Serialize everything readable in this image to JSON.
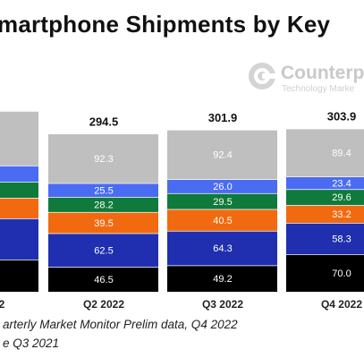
{
  "title": "martphone Shipments by Key",
  "logo": {
    "name": "Counterp",
    "tagline": "Technology Marke"
  },
  "footnotes": [
    "arterly Market Monitor Prelim data, Q4 2022",
    "e Q3 2021"
  ],
  "colors": {
    "gray": "#bfbfbf",
    "lightblue": "#4a6cf2",
    "green": "#0f7a3c",
    "orange": "#f26a10",
    "navy": "#1f2fb0",
    "black": "#000000"
  },
  "chart_data": {
    "type": "bar",
    "stacked": true,
    "ylim": [
      0,
      320
    ],
    "categories": [
      "2",
      "Q2 2022",
      "Q3 2022",
      "Q4 2022"
    ],
    "totals": [
      "",
      "294.5",
      "301.9",
      "303.9"
    ],
    "series": [
      {
        "color": "black",
        "values": [
          null,
          46.5,
          49.2,
          70.0
        ],
        "labels": [
          "",
          "46.5",
          "49.2",
          "70.0"
        ]
      },
      {
        "color": "navy",
        "values": [
          null,
          62.5,
          64.3,
          58.3
        ],
        "labels": [
          "",
          "62.5",
          "64.3",
          "58.3"
        ]
      },
      {
        "color": "orange",
        "values": [
          null,
          39.5,
          40.5,
          33.2
        ],
        "labels": [
          "",
          "39.5",
          "40.5",
          "33.2"
        ]
      },
      {
        "color": "green",
        "values": [
          null,
          28.2,
          29.5,
          29.6
        ],
        "labels": [
          "",
          "28.2",
          "29.5",
          "29.6"
        ]
      },
      {
        "color": "lightblue",
        "values": [
          null,
          25.5,
          26.0,
          23.4
        ],
        "labels": [
          "",
          "25.5",
          "26.0",
          "23.4"
        ]
      },
      {
        "color": "gray",
        "values": [
          null,
          92.3,
          92.4,
          89.4
        ],
        "labels": [
          "",
          "92.3",
          "92.4",
          "89.4"
        ]
      }
    ]
  }
}
